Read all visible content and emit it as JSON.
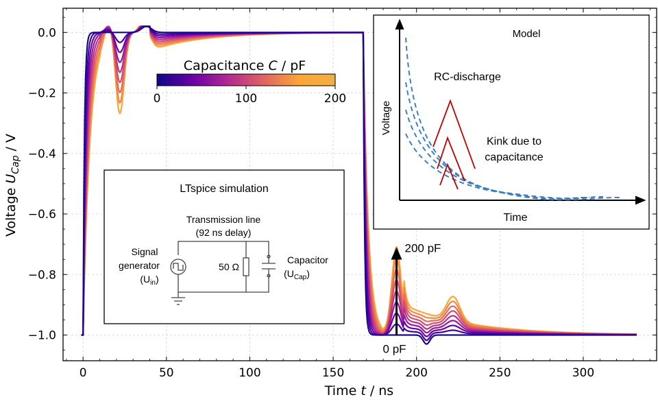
{
  "chart_data": {
    "type": "line",
    "title": "",
    "xlabel_pre": "Time ",
    "xlabel_var": "t",
    "xlabel_post": " / ns",
    "ylabel_pre": "Voltage ",
    "ylabel_var": "U",
    "ylabel_sub": "Cap",
    "ylabel_post": " / V",
    "xlim": [
      -12,
      344
    ],
    "ylim": [
      -1.085,
      0.08
    ],
    "xticks": [
      0,
      50,
      100,
      150,
      200,
      250,
      300
    ],
    "xtick_labels": [
      "0",
      "50",
      "100",
      "150",
      "200",
      "250",
      "300"
    ],
    "yticks": [
      0.0,
      -0.2,
      -0.4,
      -0.6,
      -0.8,
      -1.0
    ],
    "ytick_labels": [
      "0.0",
      "−0.2",
      "−0.4",
      "−0.6",
      "−0.8",
      "−1.0"
    ],
    "grid": true,
    "series_count": 9,
    "capacitances_pF": [
      0,
      25,
      50,
      75,
      100,
      125,
      150,
      175,
      200
    ],
    "colorbar": {
      "label_pre": "Capacitance ",
      "label_var": "C",
      "label_post": " / pF",
      "min": 0,
      "max": 200,
      "tick_labels": [
        "0",
        "100",
        "200"
      ],
      "colors": [
        "#0d0887",
        "#6a00a8",
        "#b12a90",
        "#e16462",
        "#fca636",
        "#f0f921"
      ]
    },
    "arrow": {
      "top_label": "200 pF",
      "bottom_label": "0 pF",
      "x": 188,
      "y_from": -1.0,
      "y_to": -0.71
    }
  },
  "insets": {
    "ltspice": {
      "title": "LTspice simulation",
      "tline_1": "Transmission line",
      "tline_2": "(92 ns delay)",
      "gen_1": "Signal",
      "gen_2": "generator",
      "gen_3_pre": "(U",
      "gen_3_sub": "in",
      "gen_3_post": ")",
      "resistor": "50 Ω",
      "cap_1": "Capacitor",
      "cap_2_pre": "(U",
      "cap_2_sub": "Cap",
      "cap_2_post": ")"
    },
    "model": {
      "title": "Model",
      "rc_label": "RC-discharge",
      "kink_1": "Kink due to",
      "kink_2": "capacitance",
      "xlabel": "Time",
      "ylabel": "Voltage",
      "rc_color": "#3a7fc0",
      "kink_color": "#c00000"
    }
  }
}
